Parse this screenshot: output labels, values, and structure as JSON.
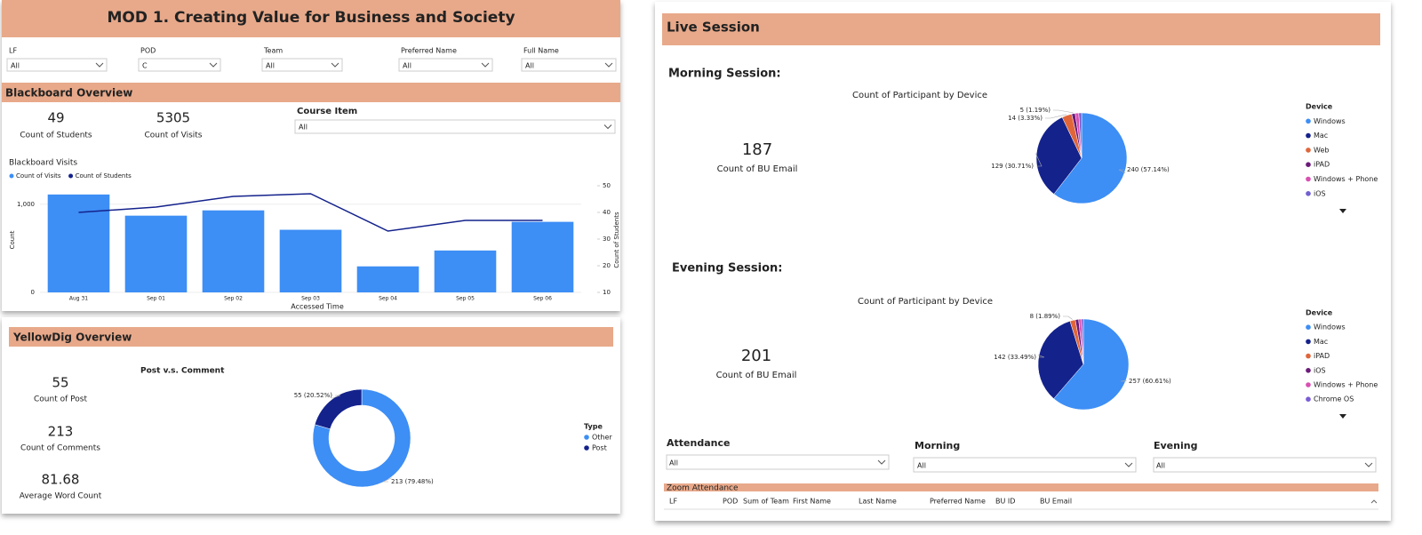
{
  "left": {
    "title": "MOD 1. Creating Value for Business and Society",
    "filters": [
      {
        "label": "LF",
        "value": "All"
      },
      {
        "label": "POD",
        "value": "C"
      },
      {
        "label": "Team",
        "value": "All"
      },
      {
        "label": "Preferred Name",
        "value": "All"
      },
      {
        "label": "Full Name",
        "value": "All"
      }
    ],
    "blackboard": {
      "heading": "Blackboard Overview",
      "kpis": [
        {
          "value": 49,
          "label": "Count of Students"
        },
        {
          "value": 5305,
          "label": "Count of Visits"
        }
      ],
      "course_item": {
        "label": "Course Item",
        "value": "All"
      },
      "chart": {
        "type": "bar-line",
        "title": "Blackboard Visits",
        "x_label": "Accessed Time",
        "y_label": "Count",
        "y2_label": "Count of Students",
        "categories": [
          "Aug 31",
          "Sep 01",
          "Sep 02",
          "Sep 03",
          "Sep 04",
          "Sep 05",
          "Sep 06"
        ],
        "series": [
          {
            "name": "Count of Visits",
            "color": "#3d8ef5",
            "values": [
              1110,
              870,
              930,
              710,
              295,
              475,
              800
            ]
          },
          {
            "name": "Count of Students",
            "color": "#14228c",
            "axis": "y2",
            "values": [
              40,
              42,
              46,
              47,
              33,
              37,
              37
            ]
          }
        ],
        "ylim": [
          0,
          1300
        ],
        "yticks": [
          0,
          {
            "value": 1000,
            "label": "1,000"
          }
        ],
        "y2lim": [
          10,
          53
        ],
        "y2ticks": [
          10,
          20,
          30,
          40,
          50
        ]
      }
    },
    "yellowdig": {
      "heading": "YellowDig Overview",
      "kpis": [
        {
          "value": 55,
          "label": "Count of Post"
        },
        {
          "value": 213,
          "label": "Count of Comments"
        },
        {
          "value": 81.68,
          "label": "Average Word Count"
        }
      ],
      "chart": {
        "type": "donut",
        "title": "Post v.s. Comment",
        "legend_title": "Type",
        "categories": [
          "Other",
          "Post"
        ],
        "colors": [
          "#3d8ef5",
          "#14228c"
        ],
        "values": [
          213,
          55
        ],
        "value_labels": [
          "213 (79.48%)",
          "55 (20.52%)"
        ]
      }
    }
  },
  "right": {
    "heading": "Live Session",
    "morning": {
      "heading": "Morning Session:",
      "kpi": {
        "value": 187,
        "label": "Count of BU Email"
      },
      "chart": {
        "type": "pie",
        "title": "Count of Participant by Device",
        "legend_title": "Device",
        "categories": [
          "Windows",
          "Mac",
          "Web",
          "iPAD",
          "Windows + Phone",
          "iOS"
        ],
        "colors": [
          "#3d8ef5",
          "#14228c",
          "#e0663a",
          "#6b1a7a",
          "#d94fb3",
          "#7060d0"
        ],
        "values": [
          240,
          129,
          14,
          5,
          5,
          4
        ],
        "value_labels": [
          "240 (57.14%)",
          "129 (30.71%)",
          "14 (3.33%)",
          "5 (1.19%)",
          null,
          null
        ]
      }
    },
    "evening": {
      "heading": "Evening Session:",
      "kpi": {
        "value": 201,
        "label": "Count of BU Email"
      },
      "chart": {
        "type": "pie",
        "title": "Count of Participant by Device",
        "legend_title": "Device",
        "categories": [
          "Windows",
          "Mac",
          "iPAD",
          "iOS",
          "Windows + Phone",
          "Chrome OS"
        ],
        "colors": [
          "#3d8ef5",
          "#14228c",
          "#e0663a",
          "#6b1a7a",
          "#d94fb3",
          "#7a5bd6"
        ],
        "values": [
          257,
          142,
          8,
          5,
          4,
          3
        ],
        "value_labels": [
          "257 (60.61%)",
          "142 (33.49%)",
          "8 (1.89%)",
          null,
          null,
          null
        ]
      }
    },
    "filters": [
      {
        "label": "Attendance",
        "value": "All"
      },
      {
        "label": "Morning",
        "value": "All"
      },
      {
        "label": "Evening",
        "value": "All"
      }
    ],
    "zoom": {
      "heading": "Zoom Attendance",
      "columns": [
        "LF",
        "POD",
        "Sum of Team",
        "First Name",
        "Last Name",
        "Preferred Name",
        "BU ID",
        "BU Email"
      ]
    }
  }
}
